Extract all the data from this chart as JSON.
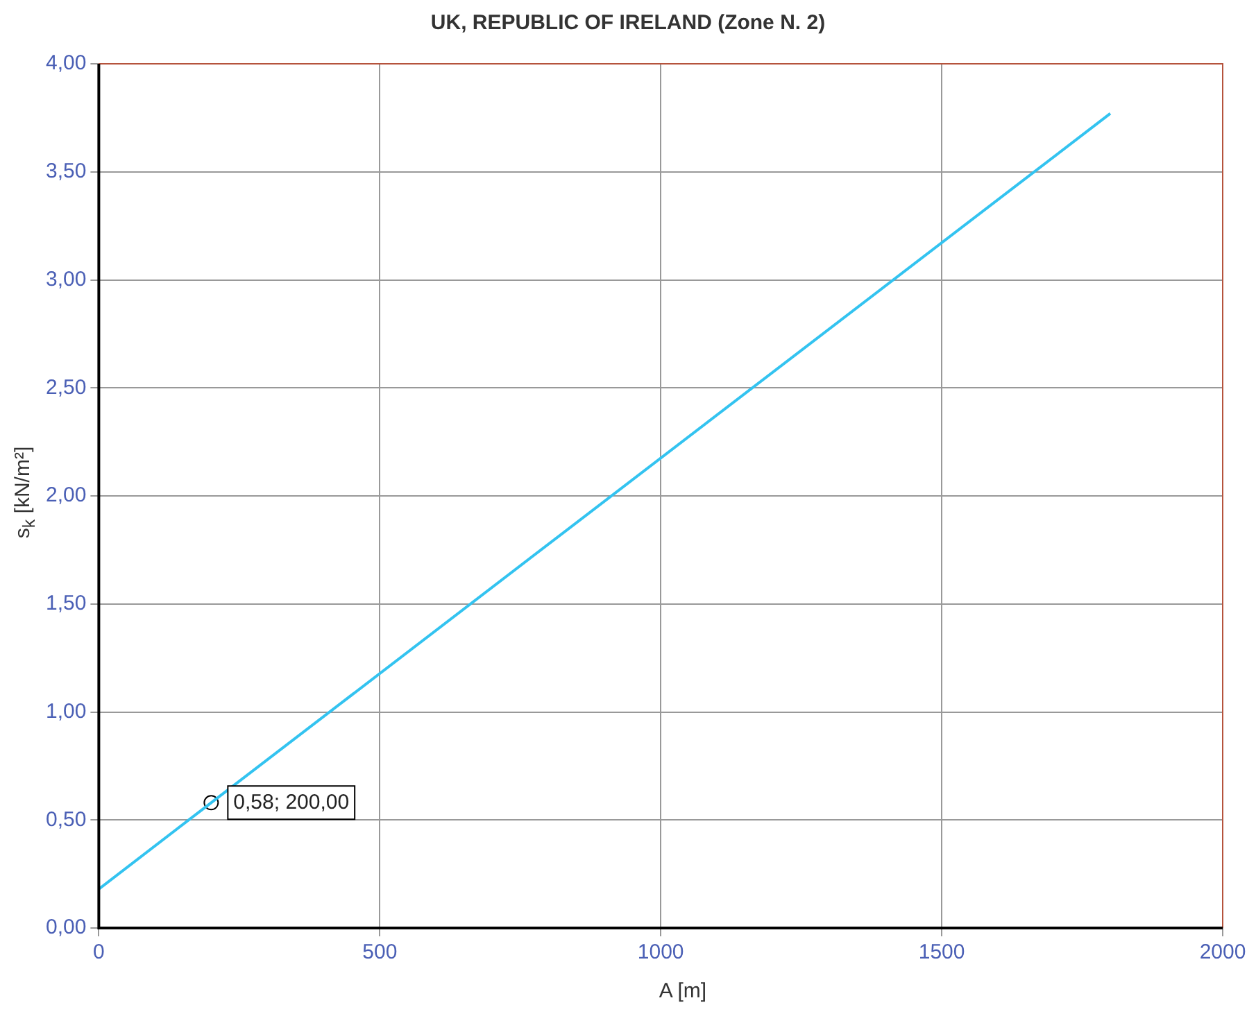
{
  "chart_data": {
    "type": "line",
    "title": "UK, REPUBLIC OF IRELAND (Zone N. 2)",
    "xlabel": "A [m]",
    "ylabel": "s$_{k}$ [kN/m²]",
    "series": [
      {
        "type": "line",
        "color": "#33c3f0",
        "x": [
          0,
          200,
          1800
        ],
        "values": [
          0.18,
          0.58,
          3.77
        ],
        "marker": "none"
      },
      {
        "type": "scatter",
        "color": "#000000",
        "x": [
          200
        ],
        "values": [
          0.58
        ],
        "marker": "circle"
      }
    ],
    "annotations": [
      {
        "text": "0,58; 200,00",
        "x": 200,
        "y": 0.58
      }
    ],
    "xlim": [
      0,
      2000
    ],
    "xticks": [
      0,
      500,
      1000,
      1500,
      2000
    ],
    "ylim": [
      0,
      4
    ],
    "yticks": [
      {
        "value": 0,
        "label": "0,00"
      },
      {
        "value": 0.5,
        "label": "0,50"
      },
      {
        "value": 1,
        "label": "1,00"
      },
      {
        "value": 1.5,
        "label": "1,50"
      },
      {
        "value": 2,
        "label": "2,00"
      },
      {
        "value": 2.5,
        "label": "2,50"
      },
      {
        "value": 3,
        "label": "3,00"
      },
      {
        "value": 3.5,
        "label": "3,50"
      },
      {
        "value": 4,
        "label": "4,00"
      }
    ],
    "grid": true,
    "legend": false
  }
}
